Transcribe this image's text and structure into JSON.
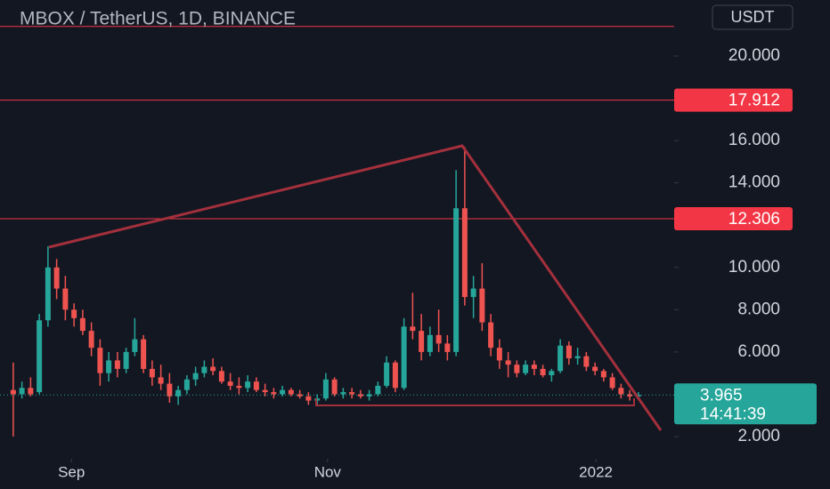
{
  "chart_data": {
    "type": "candlestick",
    "title": "MBOX / TetherUS, 1D, BINANCE",
    "currency": "USDT",
    "up_color": "#26a69a",
    "down_color": "#ef5350",
    "grid": false,
    "ylim": [
      0.78,
      22.65
    ],
    "yticks": [
      {
        "value": 2,
        "label": "2.000"
      },
      {
        "value": 6,
        "label": "6.000"
      },
      {
        "value": 8,
        "label": "8.000"
      },
      {
        "value": 10,
        "label": "10.000"
      },
      {
        "value": 14,
        "label": "14.000"
      },
      {
        "value": 16,
        "label": "16.000"
      },
      {
        "value": 20,
        "label": "20.000"
      }
    ],
    "xlim": [
      -0.5,
      74.5
    ],
    "xticks": [
      {
        "value": 6.7,
        "label": "Sep"
      },
      {
        "value": 36.2,
        "label": "Nov"
      },
      {
        "value": 67.1,
        "label": "2022"
      }
    ],
    "levels": [
      {
        "value": 21.4
      },
      {
        "value": 17.912,
        "label": "17.912"
      },
      {
        "value": 12.306,
        "label": "12.306"
      }
    ],
    "last_price": {
      "value": 3.965,
      "label": "3.965",
      "countdown": "14:41:39"
    },
    "ohlc": [
      [
        4.2,
        5.5,
        2.0,
        4.0
      ],
      [
        4.0,
        4.6,
        3.8,
        4.3
      ],
      [
        4.3,
        4.8,
        3.9,
        4.0
      ],
      [
        4.1,
        7.8,
        4.0,
        7.5
      ],
      [
        7.5,
        11.0,
        7.2,
        10.0
      ],
      [
        10.0,
        10.4,
        8.5,
        9.0
      ],
      [
        9.0,
        9.6,
        7.5,
        8.0
      ],
      [
        8.0,
        8.3,
        7.2,
        7.6
      ],
      [
        7.6,
        8.0,
        6.8,
        7.0
      ],
      [
        7.0,
        7.4,
        5.8,
        6.2
      ],
      [
        6.2,
        6.6,
        4.4,
        5.0
      ],
      [
        5.0,
        6.0,
        4.6,
        5.6
      ],
      [
        5.6,
        6.0,
        4.8,
        5.2
      ],
      [
        5.2,
        6.2,
        5.0,
        6.0
      ],
      [
        6.0,
        7.6,
        5.8,
        6.6
      ],
      [
        6.6,
        6.8,
        5.0,
        5.2
      ],
      [
        5.2,
        5.6,
        4.4,
        4.8
      ],
      [
        4.8,
        5.4,
        4.2,
        4.5
      ],
      [
        4.5,
        5.0,
        3.6,
        3.9
      ],
      [
        3.9,
        4.4,
        3.5,
        4.2
      ],
      [
        4.2,
        4.9,
        4.0,
        4.7
      ],
      [
        4.7,
        5.3,
        4.4,
        5.0
      ],
      [
        5.0,
        5.6,
        4.8,
        5.3
      ],
      [
        5.3,
        5.7,
        4.9,
        5.1
      ],
      [
        5.1,
        5.3,
        4.5,
        4.6
      ],
      [
        4.6,
        5.0,
        4.2,
        4.4
      ],
      [
        4.4,
        4.8,
        4.0,
        4.3
      ],
      [
        4.3,
        4.9,
        4.1,
        4.6
      ],
      [
        4.6,
        4.8,
        4.1,
        4.2
      ],
      [
        4.2,
        4.5,
        3.9,
        4.1
      ],
      [
        4.1,
        4.3,
        3.8,
        4.0
      ],
      [
        4.0,
        4.4,
        3.9,
        4.2
      ],
      [
        4.2,
        4.3,
        3.9,
        4.0
      ],
      [
        4.0,
        4.2,
        3.8,
        3.9
      ],
      [
        3.9,
        4.1,
        3.5,
        3.7
      ],
      [
        3.7,
        4.0,
        3.5,
        3.8
      ],
      [
        3.8,
        5.0,
        3.7,
        4.7
      ],
      [
        4.7,
        4.8,
        3.9,
        4.0
      ],
      [
        4.0,
        4.3,
        3.8,
        4.1
      ],
      [
        4.1,
        4.3,
        3.8,
        4.0
      ],
      [
        4.0,
        4.2,
        3.8,
        3.9
      ],
      [
        3.9,
        4.2,
        3.7,
        4.0
      ],
      [
        4.0,
        4.6,
        3.9,
        4.4
      ],
      [
        4.4,
        5.8,
        4.3,
        5.5
      ],
      [
        5.5,
        5.6,
        4.1,
        4.3
      ],
      [
        4.3,
        7.6,
        4.2,
        7.2
      ],
      [
        7.2,
        8.8,
        6.6,
        7.0
      ],
      [
        7.0,
        7.8,
        5.6,
        6.0
      ],
      [
        6.0,
        7.2,
        5.8,
        6.8
      ],
      [
        6.8,
        8.0,
        6.0,
        6.4
      ],
      [
        6.4,
        6.8,
        5.6,
        6.0
      ],
      [
        6.0,
        14.6,
        5.8,
        12.8
      ],
      [
        12.8,
        15.7,
        8.2,
        8.6
      ],
      [
        8.6,
        9.6,
        7.6,
        9.0
      ],
      [
        9.0,
        10.2,
        7.0,
        7.4
      ],
      [
        7.4,
        7.8,
        5.8,
        6.2
      ],
      [
        6.2,
        6.6,
        5.2,
        5.6
      ],
      [
        5.6,
        6.0,
        4.8,
        5.4
      ],
      [
        5.4,
        5.6,
        4.8,
        5.0
      ],
      [
        5.0,
        5.6,
        4.9,
        5.4
      ],
      [
        5.4,
        5.6,
        4.9,
        5.2
      ],
      [
        5.2,
        5.4,
        4.8,
        4.9
      ],
      [
        4.9,
        5.2,
        4.6,
        5.1
      ],
      [
        5.1,
        6.6,
        5.0,
        6.3
      ],
      [
        6.3,
        6.5,
        5.4,
        5.7
      ],
      [
        5.7,
        6.2,
        5.4,
        5.8
      ],
      [
        5.8,
        6.0,
        5.1,
        5.3
      ],
      [
        5.3,
        5.5,
        4.9,
        5.1
      ],
      [
        5.1,
        5.2,
        4.6,
        4.8
      ],
      [
        4.8,
        5.0,
        4.2,
        4.3
      ],
      [
        4.3,
        4.5,
        3.8,
        4.0
      ],
      [
        4.0,
        4.2,
        3.7,
        3.9
      ],
      [
        3.9,
        4.1,
        3.8,
        3.965
      ]
    ]
  }
}
